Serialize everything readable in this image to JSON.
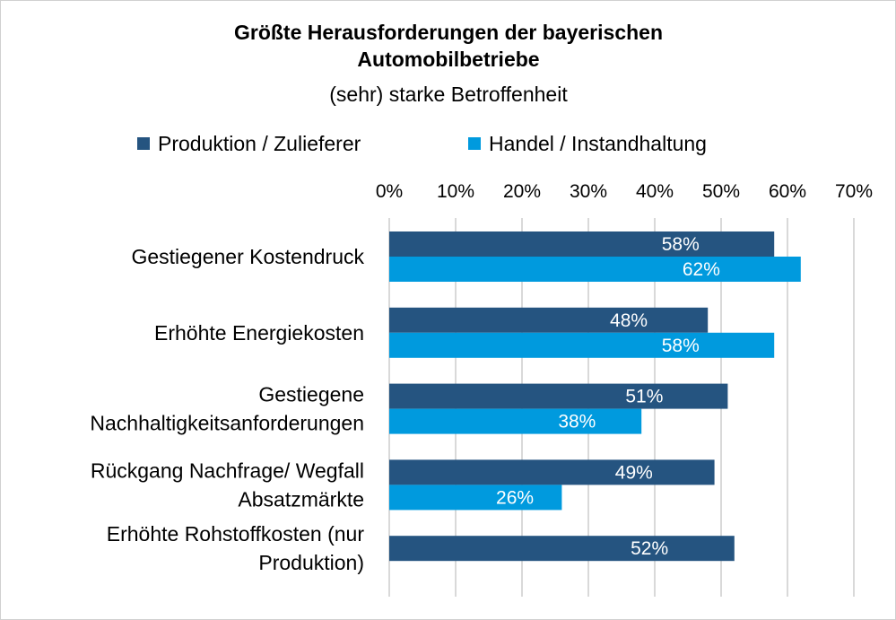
{
  "chart_data": {
    "type": "bar",
    "orientation": "horizontal",
    "title": "Größte Herausforderungen der bayerischen Automobilbetriebe",
    "title_lines": [
      "Größte Herausforderungen der bayerischen",
      "Automobilbetriebe"
    ],
    "subtitle": "(sehr) starke Betroffenheit",
    "categories": [
      [
        "Gestiegener Kostendruck"
      ],
      [
        "Erhöhte Energiekosten"
      ],
      [
        "Gestiegene",
        "Nachhaltigkeitsanforderungen"
      ],
      [
        "Rückgang Nachfrage/ Wegfall",
        "Absatzmärkte"
      ],
      [
        "Erhöhte Rohstoffkosten (nur",
        "Produktion)"
      ]
    ],
    "series": [
      {
        "name": "Produktion / Zulieferer",
        "color": "#255480",
        "values": [
          58,
          48,
          51,
          49,
          52
        ]
      },
      {
        "name": "Handel / Instandhaltung",
        "color": "#009ADE",
        "values": [
          62,
          58,
          38,
          26,
          null
        ]
      }
    ],
    "xlim": [
      0,
      70
    ],
    "xticks": [
      0,
      10,
      20,
      30,
      40,
      50,
      60,
      70
    ],
    "tick_suffix": "%",
    "axis_position": "top",
    "grid": true,
    "gridline_color": "#d9d9d9",
    "legend_position": "top",
    "data_labels": true
  }
}
